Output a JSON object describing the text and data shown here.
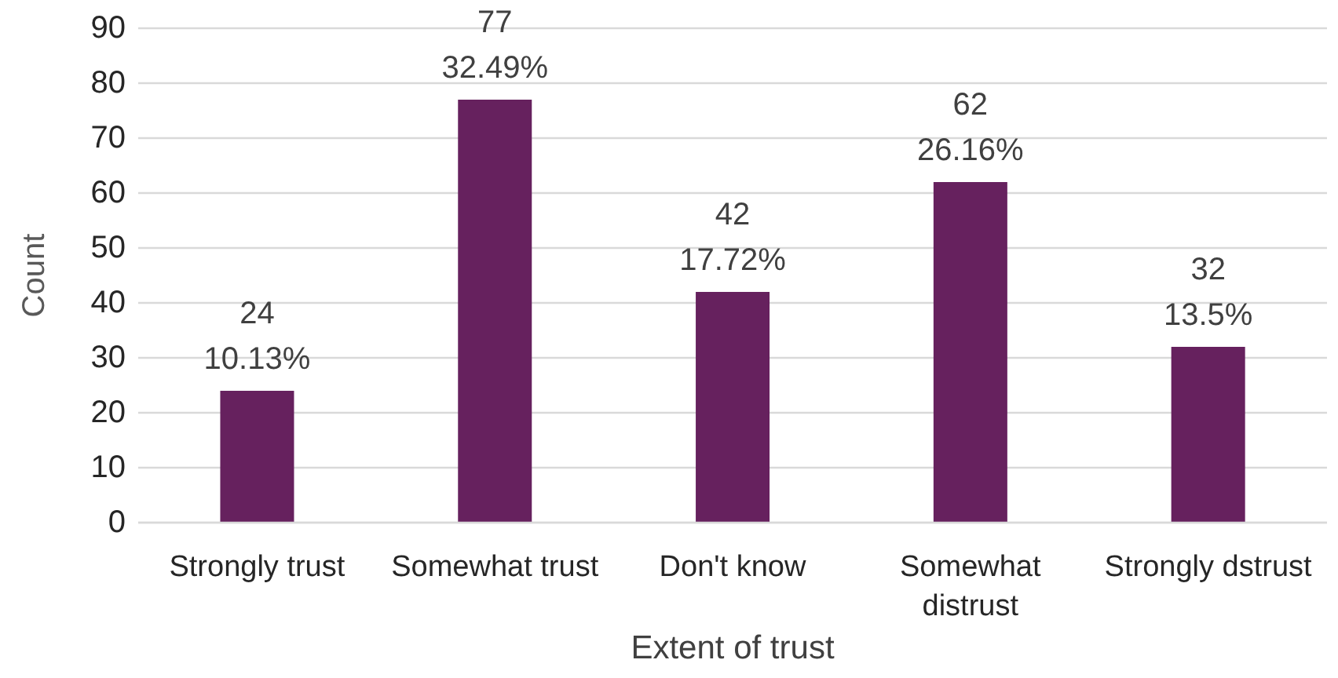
{
  "chart_data": {
    "type": "bar",
    "xlabel": "Extent of trust",
    "ylabel": "Count",
    "categories": [
      "Strongly trust",
      "Somewhat trust",
      "Don't know",
      "Somewhat distrust",
      "Strongly dstrust"
    ],
    "values": [
      24,
      77,
      42,
      62,
      32
    ],
    "value_labels": [
      "24\n10.13%",
      "77\n32.49%",
      "42\n17.72%",
      "62\n26.16%",
      "32\n13.5%"
    ],
    "color": "#66215e",
    "ylim": [
      0,
      90
    ],
    "yticks": [
      0,
      10,
      20,
      30,
      40,
      50,
      60,
      70,
      80,
      90
    ],
    "grid": "y"
  }
}
